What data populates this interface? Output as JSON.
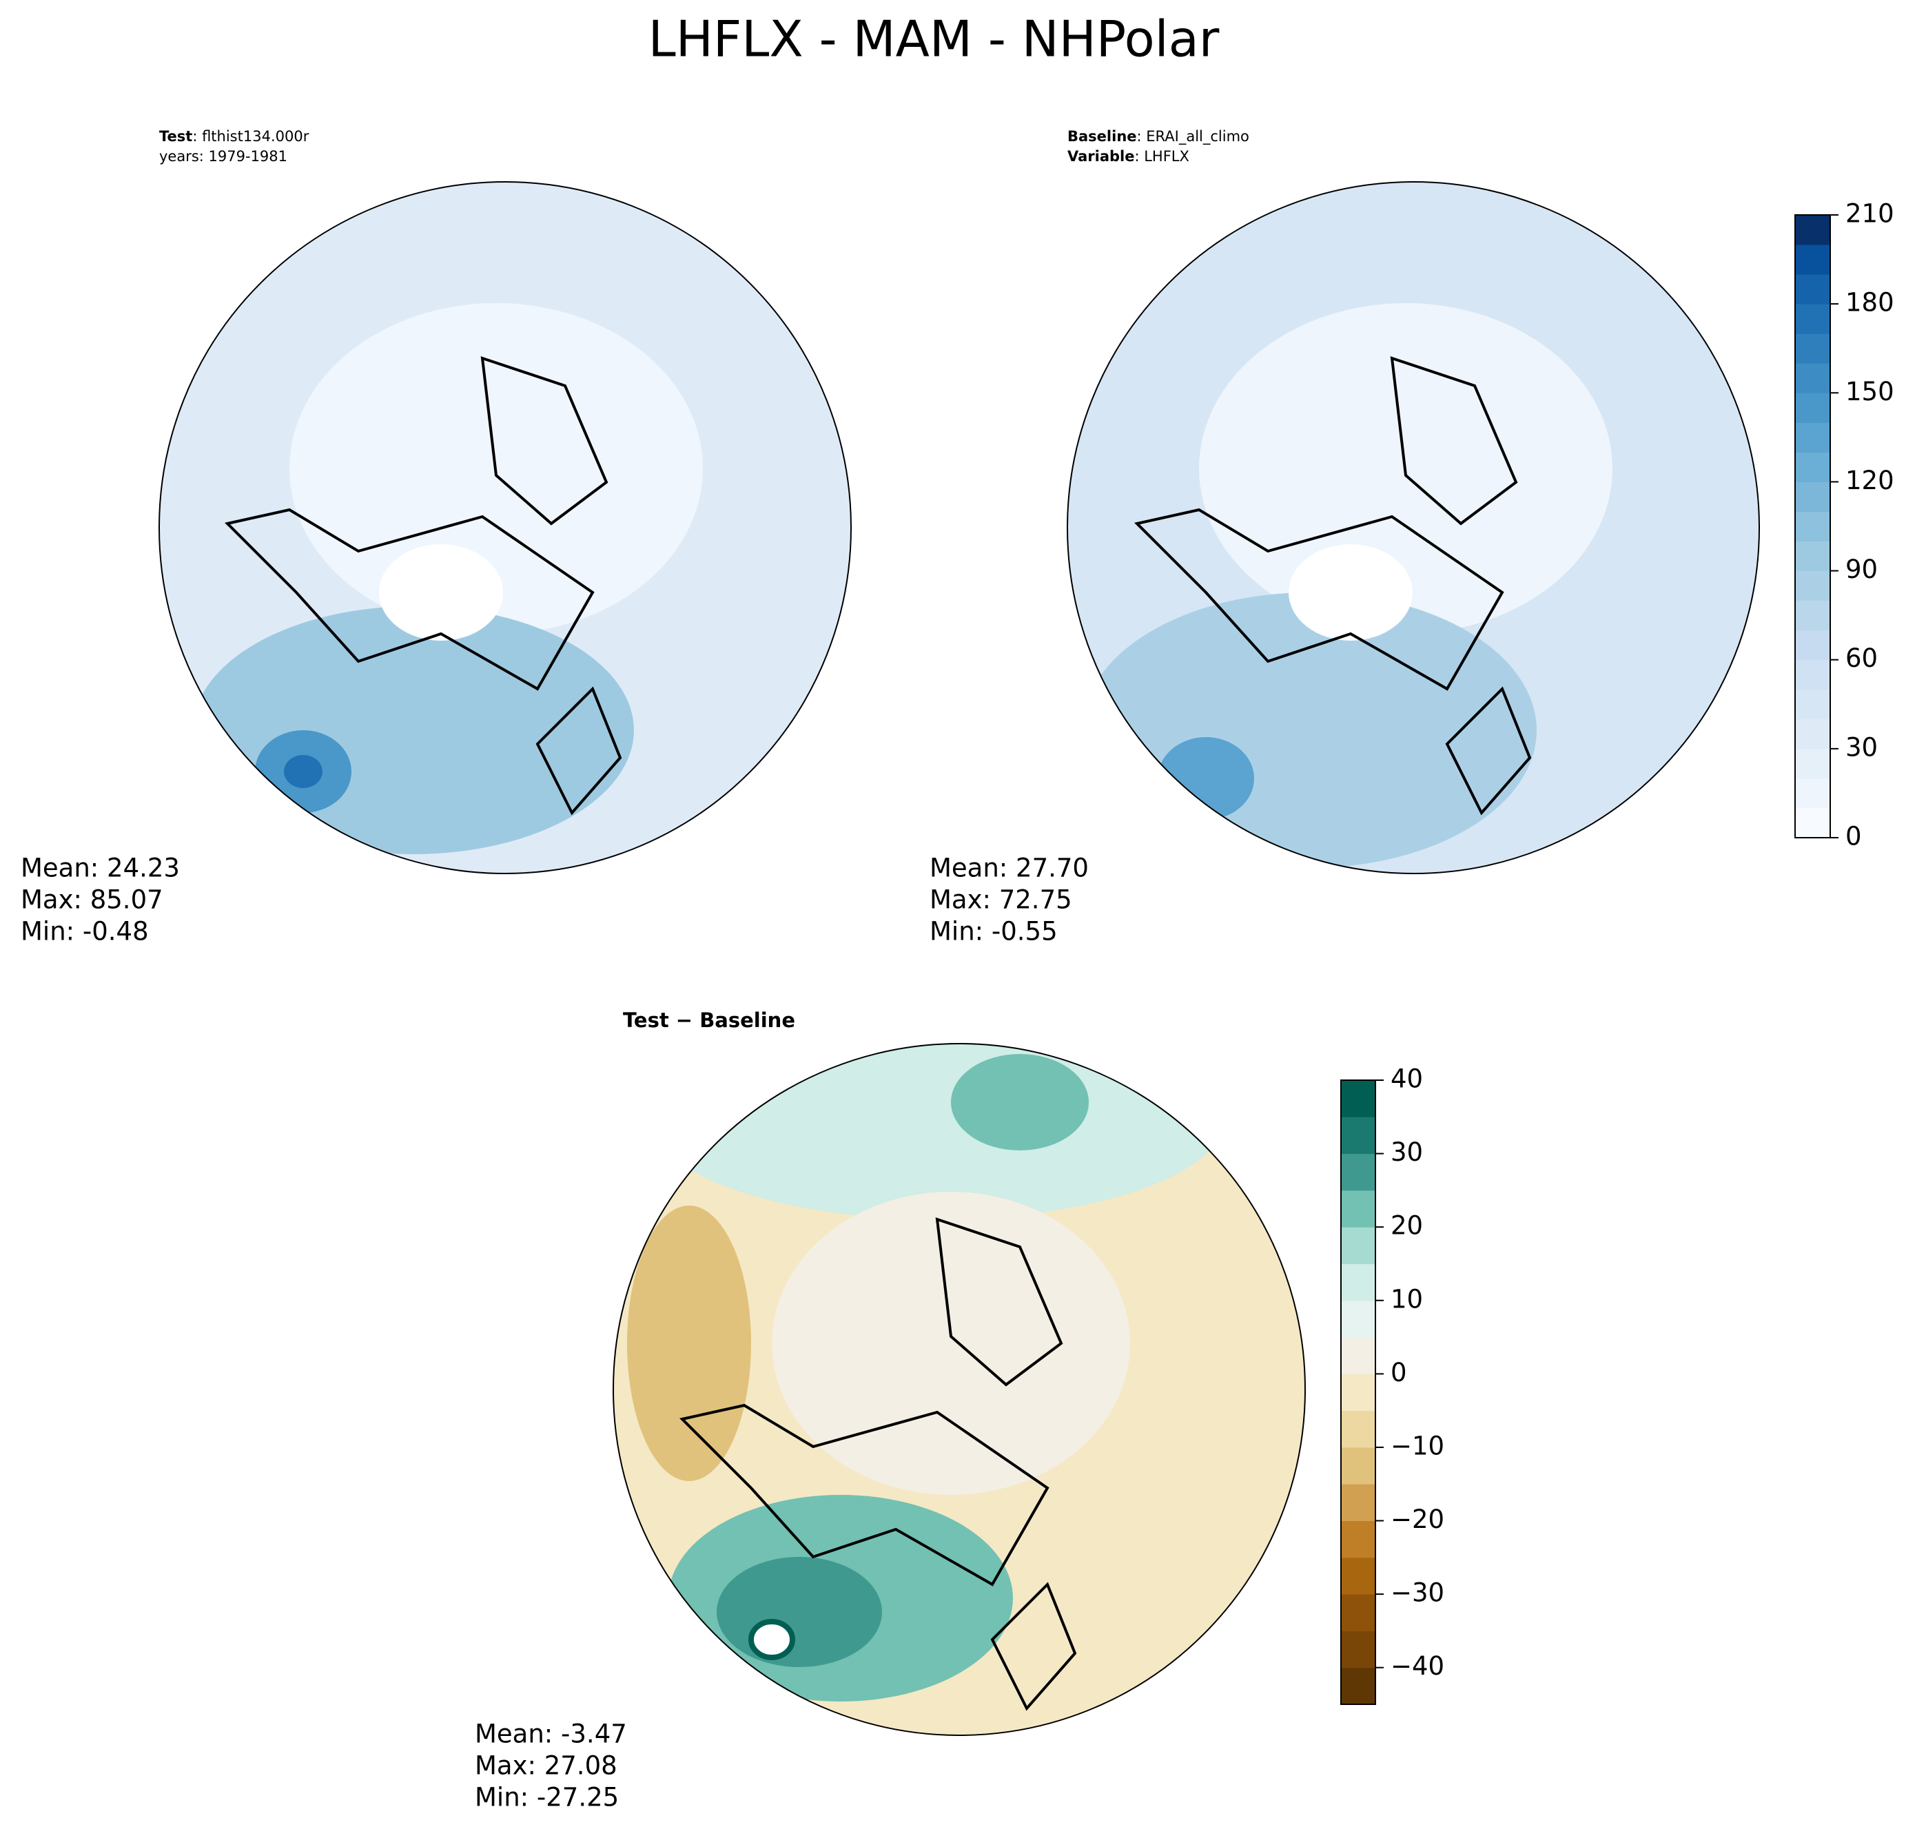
{
  "title": "LHFLX - MAM - NHPolar",
  "panels": [
    {
      "header": [
        {
          "bold": "Test",
          "rest": ": flthist134.000r"
        },
        {
          "rest": "years: 1979-1981"
        }
      ],
      "stats": [
        "Mean: 24.23",
        "Max: 85.07",
        "Min: -0.48"
      ]
    },
    {
      "header": [
        {
          "bold": "Baseline",
          "rest": ": ERAI_all_climo"
        },
        {
          "bold": "Variable",
          "rest": ": LHFLX"
        }
      ],
      "stats": [
        "Mean: 27.70",
        "Max: 72.75",
        "Min: -0.55"
      ]
    },
    {
      "header": [
        {
          "bold": "Test − Baseline"
        }
      ],
      "stats": [
        "Mean: -3.47",
        "Max: 27.08",
        "Min: -27.25"
      ]
    }
  ],
  "colorbars": [
    {
      "ylim": [
        0,
        210
      ],
      "yticks": [
        0,
        30,
        60,
        90,
        120,
        150,
        180,
        210
      ],
      "colors": [
        "#f7fbff",
        "#eef5fc",
        "#e6f0f9",
        "#deebf7",
        "#d6e6f4",
        "#cfe1f2",
        "#c6dbef",
        "#b9d6ea",
        "#abd0e6",
        "#9ecae1",
        "#8dc1dd",
        "#7cb7da",
        "#6baed6",
        "#5ba3d0",
        "#4a98c9",
        "#3d8dc4",
        "#2f7fbc",
        "#2171b5",
        "#1563aa",
        "#08519c",
        "#08306b"
      ]
    },
    {
      "ylim": [
        -45,
        40
      ],
      "yticks": [
        {
          "value": -40,
          "label": "−40"
        },
        {
          "value": -30,
          "label": "−30"
        },
        {
          "value": -20,
          "label": "−20"
        },
        {
          "value": -10,
          "label": "−10"
        },
        0,
        10,
        20,
        30,
        40
      ],
      "colors": [
        "#5e3705",
        "#7a4608",
        "#8f520a",
        "#a8660f",
        "#bf7f26",
        "#d1a050",
        "#e0c27c",
        "#ecd8a0",
        "#f5e8c5",
        "#f3efe4",
        "#e6f3f1",
        "#d0ede7",
        "#a6dbd1",
        "#72c1b3",
        "#40998f",
        "#1b7a70",
        "#005f52"
      ]
    }
  ]
}
